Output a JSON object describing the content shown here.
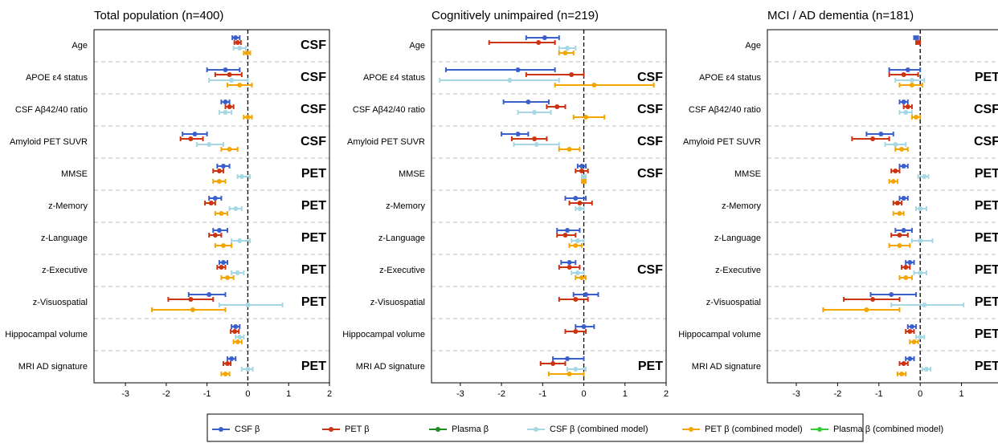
{
  "chart_data": [
    {
      "type": "forest",
      "title": "Total population (n=400)",
      "categories": [
        "Age",
        "APOE ε4 status",
        "CSF Aβ42/40 ratio",
        "Amyloid PET SUVR",
        "MMSE",
        "z-Memory",
        "z-Language",
        "z-Executive",
        "z-Visuospatial",
        "Hippocampal volume",
        "MRI AD signature"
      ],
      "xlim": [
        -3.77,
        2
      ],
      "xticks": [
        -3,
        -2,
        -1,
        0,
        1,
        2
      ],
      "annotations": [
        "CSF",
        "CSF",
        "CSF",
        "CSF",
        "PET",
        "PET",
        "PET",
        "PET",
        "PET",
        null,
        "PET"
      ],
      "series": [
        {
          "name": "CSF β",
          "color": "#3a5fcd",
          "values": [
            -0.3,
            -0.55,
            -0.55,
            -1.3,
            -0.6,
            -0.8,
            -0.7,
            -0.6,
            -0.95,
            -0.3,
            -0.4
          ],
          "ci": [
            [
              -0.38,
              -0.2
            ],
            [
              -1.0,
              -0.2
            ],
            [
              -0.65,
              -0.45
            ],
            [
              -1.6,
              -1.0
            ],
            [
              -0.75,
              -0.45
            ],
            [
              -0.95,
              -0.65
            ],
            [
              -0.85,
              -0.5
            ],
            [
              -0.7,
              -0.5
            ],
            [
              -1.45,
              -0.55
            ],
            [
              -0.4,
              -0.2
            ],
            [
              -0.5,
              -0.3
            ]
          ]
        },
        {
          "name": "PET β",
          "color": "#cc3311",
          "values": [
            -0.25,
            -0.45,
            -0.45,
            -1.4,
            -0.7,
            -0.9,
            -0.8,
            -0.65,
            -1.4,
            -0.32,
            -0.5
          ],
          "ci": [
            [
              -0.33,
              -0.17
            ],
            [
              -0.8,
              -0.15
            ],
            [
              -0.55,
              -0.35
            ],
            [
              -1.65,
              -1.1
            ],
            [
              -0.85,
              -0.6
            ],
            [
              -1.05,
              -0.8
            ],
            [
              -0.95,
              -0.65
            ],
            [
              -0.75,
              -0.55
            ],
            [
              -1.95,
              -0.85
            ],
            [
              -0.42,
              -0.22
            ],
            [
              -0.6,
              -0.42
            ]
          ]
        },
        {
          "name": "Plasma β",
          "color": "#1f8a1f",
          "values": [
            null,
            null,
            null,
            null,
            null,
            null,
            null,
            null,
            null,
            null,
            null
          ],
          "ci": [
            null,
            null,
            null,
            null,
            null,
            null,
            null,
            null,
            null,
            null,
            null
          ]
        },
        {
          "name": "CSF β (combined model)",
          "color": "#a6d8e3",
          "values": [
            -0.2,
            -0.4,
            -0.55,
            -0.95,
            -0.15,
            -0.3,
            -0.2,
            -0.25,
            0,
            -0.2,
            0
          ],
          "ci": [
            [
              -0.35,
              -0.05
            ],
            [
              -0.95,
              0
            ],
            [
              -0.7,
              -0.4
            ],
            [
              -1.25,
              -0.6
            ],
            [
              -0.25,
              0.05
            ],
            [
              -0.45,
              -0.15
            ],
            [
              -0.4,
              0.05
            ],
            [
              -0.4,
              -0.1
            ],
            [
              -0.7,
              0.85
            ],
            [
              -0.3,
              -0.1
            ],
            [
              -0.15,
              0.12
            ]
          ]
        },
        {
          "name": "PET β (combined model)",
          "color": "#f5a500",
          "values": [
            -0.02,
            -0.2,
            0,
            -0.45,
            -0.7,
            -0.65,
            -0.6,
            -0.5,
            -1.35,
            -0.25,
            -0.55
          ],
          "ci": [
            [
              -0.1,
              0.06
            ],
            [
              -0.5,
              0.1
            ],
            [
              -0.1,
              0.1
            ],
            [
              -0.65,
              -0.25
            ],
            [
              -0.85,
              -0.55
            ],
            [
              -0.8,
              -0.5
            ],
            [
              -0.8,
              -0.4
            ],
            [
              -0.65,
              -0.35
            ],
            [
              -2.35,
              -0.55
            ],
            [
              -0.35,
              -0.15
            ],
            [
              -0.65,
              -0.45
            ]
          ]
        },
        {
          "name": "Plasma β (combined model)",
          "color": "#33cc33",
          "values": [
            null,
            null,
            null,
            null,
            null,
            null,
            null,
            null,
            null,
            null,
            null
          ],
          "ci": [
            null,
            null,
            null,
            null,
            null,
            null,
            null,
            null,
            null,
            null,
            null
          ]
        }
      ]
    },
    {
      "type": "forest",
      "title": "Cognitively unimpaired (n=219)",
      "categories": [
        "Age",
        "APOE ε4 status",
        "CSF Aβ42/40 ratio",
        "Amyloid PET SUVR",
        "MMSE",
        "z-Memory",
        "z-Language",
        "z-Executive",
        "z-Visuospatial",
        "Hippocampal volume",
        "MRI AD signature"
      ],
      "xlim": [
        -3.7,
        2
      ],
      "xticks": [
        -3,
        -2,
        -1,
        0,
        1,
        2
      ],
      "annotations": [
        null,
        "CSF",
        "CSF",
        "CSF",
        "CSF",
        null,
        null,
        "CSF",
        null,
        null,
        "PET"
      ],
      "series": [
        {
          "name": "CSF β",
          "color": "#3a5fcd",
          "values": [
            -0.95,
            -1.6,
            -1.35,
            -1.6,
            -0.05,
            -0.2,
            -0.4,
            -0.35,
            0.05,
            0,
            -0.4
          ],
          "ci": [
            [
              -1.4,
              -0.6
            ],
            [
              -3.35,
              -0.7
            ],
            [
              -1.95,
              -0.85
            ],
            [
              -2.0,
              -1.35
            ],
            [
              -0.15,
              0.05
            ],
            [
              -0.45,
              0.05
            ],
            [
              -0.65,
              -0.1
            ],
            [
              -0.55,
              -0.2
            ],
            [
              -0.25,
              0.35
            ],
            [
              -0.2,
              0.25
            ],
            [
              -0.75,
              0
            ]
          ]
        },
        {
          "name": "PET β",
          "color": "#cc3311",
          "values": [
            -1.1,
            -0.3,
            -0.65,
            -1.2,
            -0.05,
            -0.1,
            -0.45,
            -0.35,
            -0.2,
            -0.2,
            -0.75
          ],
          "ci": [
            [
              -2.3,
              -0.7
            ],
            [
              -1.4,
              0
            ],
            [
              -0.9,
              -0.45
            ],
            [
              -1.75,
              -0.9
            ],
            [
              -0.2,
              0.1
            ],
            [
              -0.35,
              0.2
            ],
            [
              -0.65,
              -0.2
            ],
            [
              -0.6,
              -0.1
            ],
            [
              -0.6,
              0.1
            ],
            [
              -0.45,
              0.05
            ],
            [
              -1.05,
              -0.45
            ]
          ]
        },
        {
          "name": "Plasma β",
          "color": "#1f8a1f",
          "values": [
            null,
            null,
            null,
            null,
            null,
            null,
            null,
            null,
            null,
            null,
            null
          ],
          "ci": [
            null,
            null,
            null,
            null,
            null,
            null,
            null,
            null,
            null,
            null,
            null
          ]
        },
        {
          "name": "CSF β (combined model)",
          "color": "#a6d8e3",
          "values": [
            -0.4,
            -1.8,
            -1.2,
            -1.15,
            0,
            -0.1,
            -0.15,
            -0.15,
            null,
            null,
            -0.2
          ],
          "ci": [
            [
              -0.6,
              -0.2
            ],
            [
              -3.5,
              -0.6
            ],
            [
              -1.6,
              -0.8
            ],
            [
              -1.7,
              -0.6
            ],
            [
              -0.05,
              0.05
            ],
            [
              -0.2,
              0
            ],
            [
              -0.3,
              0
            ],
            [
              -0.3,
              0
            ],
            null,
            null,
            [
              -0.4,
              0.05
            ]
          ]
        },
        {
          "name": "PET β (combined model)",
          "color": "#f5a500",
          "values": [
            -0.45,
            0.25,
            0.05,
            -0.35,
            0,
            null,
            -0.2,
            -0.05,
            null,
            null,
            -0.35
          ],
          "ci": [
            [
              -0.6,
              -0.25
            ],
            [
              -0.7,
              1.7
            ],
            [
              -0.25,
              0.5
            ],
            [
              -0.6,
              -0.1
            ],
            [
              -0.05,
              0.05
            ],
            null,
            [
              -0.35,
              -0.05
            ],
            [
              -0.2,
              0.05
            ],
            null,
            null,
            [
              -0.85,
              0
            ]
          ]
        },
        {
          "name": "Plasma β (combined model)",
          "color": "#33cc33",
          "values": [
            null,
            null,
            null,
            null,
            null,
            null,
            null,
            null,
            null,
            null,
            null
          ],
          "ci": [
            null,
            null,
            null,
            null,
            null,
            null,
            null,
            null,
            null,
            null,
            null
          ]
        }
      ]
    },
    {
      "type": "forest",
      "title": "MCI / AD dementia (n=181)",
      "categories": [
        "Age",
        "APOE ε4 status",
        "CSF Aβ42/40 ratio",
        "Amyloid PET SUVR",
        "MMSE",
        "z-Memory",
        "z-Language",
        "z-Executive",
        "z-Visuospatial",
        "Hippocampal volume",
        "MRI AD signature"
      ],
      "xlim": [
        -3.7,
        2
      ],
      "xticks": [
        -3,
        -2,
        -1,
        0,
        1
      ],
      "annotations": [
        null,
        "PET",
        "CSF",
        "CSF",
        "PET",
        "PET",
        "PET",
        "PET",
        "PET",
        "PET",
        "PET"
      ],
      "series": [
        {
          "name": "CSF β",
          "color": "#3a5fcd",
          "values": [
            -0.1,
            -0.3,
            -0.4,
            -0.95,
            -0.4,
            -0.4,
            -0.4,
            -0.25,
            -0.7,
            -0.2,
            -0.25
          ],
          "ci": [
            [
              -0.15,
              -0.05
            ],
            [
              -0.75,
              0
            ],
            [
              -0.5,
              -0.3
            ],
            [
              -1.3,
              -0.65
            ],
            [
              -0.5,
              -0.3
            ],
            [
              -0.5,
              -0.3
            ],
            [
              -0.6,
              -0.2
            ],
            [
              -0.35,
              -0.15
            ],
            [
              -1.2,
              -0.1
            ],
            [
              -0.3,
              -0.1
            ],
            [
              -0.35,
              -0.15
            ]
          ]
        },
        {
          "name": "PET β",
          "color": "#cc3311",
          "values": [
            -0.05,
            -0.4,
            -0.3,
            -1.15,
            -0.6,
            -0.55,
            -0.5,
            -0.35,
            -1.15,
            -0.25,
            -0.4
          ],
          "ci": [
            [
              -0.1,
              0
            ],
            [
              -0.75,
              -0.05
            ],
            [
              -0.4,
              -0.2
            ],
            [
              -1.65,
              -0.75
            ],
            [
              -0.7,
              -0.5
            ],
            [
              -0.65,
              -0.45
            ],
            [
              -0.7,
              -0.3
            ],
            [
              -0.45,
              -0.25
            ],
            [
              -1.85,
              -0.5
            ],
            [
              -0.35,
              -0.15
            ],
            [
              -0.5,
              -0.3
            ]
          ]
        },
        {
          "name": "Plasma β",
          "color": "#1f8a1f",
          "values": [
            null,
            null,
            null,
            null,
            null,
            null,
            null,
            null,
            null,
            null,
            null
          ],
          "ci": [
            null,
            null,
            null,
            null,
            null,
            null,
            null,
            null,
            null,
            null,
            null
          ]
        },
        {
          "name": "CSF β (combined model)",
          "color": "#a6d8e3",
          "values": [
            null,
            -0.2,
            -0.35,
            -0.6,
            0.1,
            0,
            0,
            0,
            0.1,
            0,
            0.15
          ],
          "ci": [
            null,
            [
              -0.6,
              0.1
            ],
            [
              -0.5,
              -0.2
            ],
            [
              -0.85,
              -0.35
            ],
            [
              -0.05,
              0.2
            ],
            [
              -0.1,
              0.15
            ],
            [
              -0.2,
              0.3
            ],
            [
              -0.15,
              0.15
            ],
            [
              -0.7,
              1.05
            ],
            [
              -0.1,
              0.1
            ],
            [
              0.05,
              0.25
            ]
          ]
        },
        {
          "name": "PET β (combined model)",
          "color": "#f5a500",
          "values": [
            null,
            -0.2,
            -0.1,
            -0.45,
            -0.65,
            -0.5,
            -0.5,
            -0.35,
            -1.3,
            -0.15,
            -0.45
          ],
          "ci": [
            null,
            [
              -0.5,
              0.05
            ],
            [
              -0.2,
              0
            ],
            [
              -0.6,
              -0.3
            ],
            [
              -0.75,
              -0.55
            ],
            [
              -0.65,
              -0.4
            ],
            [
              -0.75,
              -0.25
            ],
            [
              -0.5,
              -0.2
            ],
            [
              -2.35,
              -0.5
            ],
            [
              -0.25,
              -0.05
            ],
            [
              -0.55,
              -0.35
            ]
          ]
        },
        {
          "name": "Plasma β (combined model)",
          "color": "#33cc33",
          "values": [
            null,
            null,
            null,
            null,
            null,
            null,
            null,
            null,
            null,
            null,
            null
          ],
          "ci": [
            null,
            null,
            null,
            null,
            null,
            null,
            null,
            null,
            null,
            null,
            null
          ]
        }
      ]
    }
  ]
}
